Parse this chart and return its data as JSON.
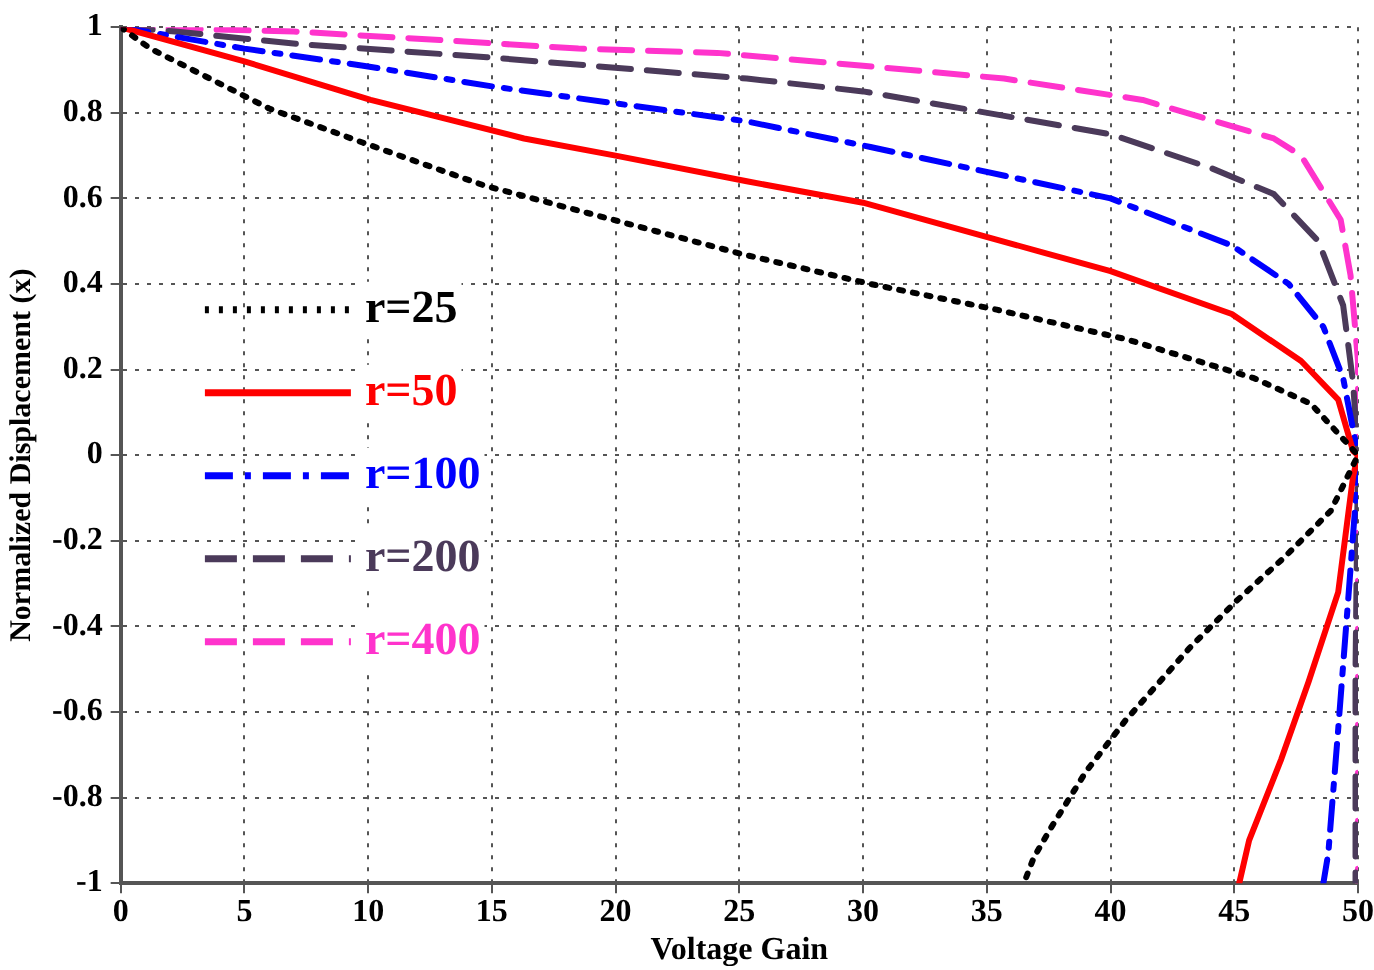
{
  "chart_data": {
    "type": "line",
    "xlabel": "Voltage Gain",
    "ylabel": "Normalized Displacement (x)",
    "xlim": [
      0,
      50
    ],
    "xticks": [
      0,
      5,
      10,
      15,
      20,
      25,
      30,
      35,
      40,
      45,
      50
    ],
    "ylim": [
      -1,
      1
    ],
    "yticks": [
      -1,
      -0.8,
      -0.6,
      -0.4,
      -0.2,
      0,
      0.2,
      0.4,
      0.6,
      0.8,
      1
    ],
    "grid": true,
    "legend": "left",
    "marker": "none",
    "series": [
      {
        "name": "r=25",
        "color": "#000000",
        "line_style": "dotted",
        "x": [
          0,
          1.2,
          6,
          9.8,
          14.7,
          19.9,
          25.1,
          30.3,
          35.4,
          40.7,
          45.8,
          48.1,
          50,
          48.9,
          47,
          45.1,
          43.2,
          40.6,
          39,
          37.6,
          36.9,
          36.5
        ],
        "values": [
          1,
          0.95,
          0.81,
          0.73,
          0.63,
          0.55,
          0.47,
          0.4,
          0.34,
          0.27,
          0.18,
          0.12,
          0,
          -0.13,
          -0.24,
          -0.34,
          -0.45,
          -0.62,
          -0.74,
          -0.87,
          -0.94,
          -1
        ]
      },
      {
        "name": "r=50",
        "color": "#ff0000",
        "line_style": "solid",
        "x": [
          0,
          5,
          10.1,
          16.3,
          20,
          25.3,
          30,
          40,
          44.9,
          47.7,
          49.2,
          49.8,
          50,
          49.8,
          49.2,
          48,
          46.9,
          45.6,
          45.2
        ],
        "values": [
          1,
          0.92,
          0.83,
          0.74,
          0.7,
          0.64,
          0.59,
          0.43,
          0.33,
          0.22,
          0.13,
          0.01,
          0,
          -0.05,
          -0.32,
          -0.53,
          -0.71,
          -0.9,
          -1
        ]
      },
      {
        "name": "r=100",
        "color": "#0000ff",
        "line_style": "dashdot",
        "x": [
          0,
          5,
          9.8,
          15.2,
          25.3,
          30.3,
          40,
          44.9,
          47.2,
          48.6,
          49.4,
          49.8,
          50,
          49.9,
          49.6,
          49.2,
          48.8,
          48.6
        ],
        "values": [
          1,
          0.95,
          0.91,
          0.86,
          0.78,
          0.72,
          0.6,
          0.49,
          0.4,
          0.3,
          0.18,
          0.06,
          0,
          -0.11,
          -0.34,
          -0.64,
          -0.93,
          -1
        ]
      },
      {
        "name": "r=200",
        "color": "#4b3a5a",
        "line_style": "dashed",
        "x": [
          0,
          2.2,
          7.3,
          14.8,
          25.3,
          30,
          40,
          44.1,
          46.6,
          48.4,
          49.4,
          49.8,
          50,
          49.9,
          49.9
        ],
        "values": [
          1,
          0.99,
          0.96,
          0.93,
          0.88,
          0.85,
          0.75,
          0.67,
          0.61,
          0.5,
          0.35,
          0.17,
          0,
          -0.5,
          -1
        ]
      },
      {
        "name": "r=400",
        "color": "#ff33cc",
        "line_style": "dashed",
        "x": [
          0,
          7,
          12.9,
          18.5,
          24.1,
          30,
          35.7,
          41.3,
          46.6,
          47.7,
          49.3,
          49.7,
          50,
          50,
          50
        ],
        "values": [
          1,
          0.99,
          0.97,
          0.95,
          0.94,
          0.91,
          0.88,
          0.83,
          0.74,
          0.7,
          0.55,
          0.42,
          0.22,
          0,
          -1
        ]
      }
    ]
  }
}
